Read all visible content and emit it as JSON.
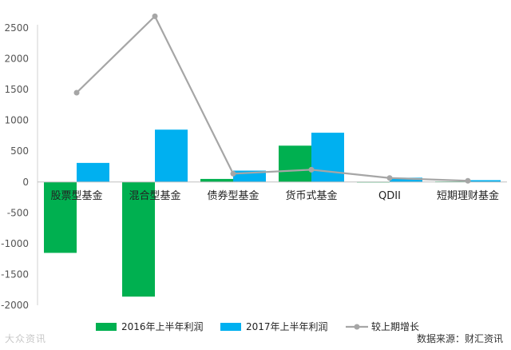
{
  "chart_data": {
    "type": "bar",
    "categories": [
      "股票型基金",
      "混合型基金",
      "债券型基金",
      "货币式基金",
      "QDII",
      "短期理财基金"
    ],
    "series": [
      {
        "name": "2016年上半年利润",
        "type": "bar",
        "color": "#00b050",
        "values": [
          -1150,
          -1860,
          50,
          590,
          5,
          10
        ]
      },
      {
        "name": "2017年上半年利润",
        "type": "bar",
        "color": "#00b0f0",
        "values": [
          310,
          850,
          185,
          800,
          70,
          30
        ]
      },
      {
        "name": "较上期增长",
        "type": "line",
        "color": "#a6a6a6",
        "values": [
          1450,
          2690,
          135,
          200,
          65,
          20
        ]
      }
    ],
    "ylim": [
      -2000,
      2500
    ],
    "yticks": [
      -2000,
      -1500,
      -1000,
      -500,
      0,
      500,
      1000,
      1500,
      2000,
      2500
    ],
    "legend_position": "bottom",
    "grid": false
  },
  "source_text": "数据来源：财汇资讯",
  "watermark_text": "大众资讯"
}
